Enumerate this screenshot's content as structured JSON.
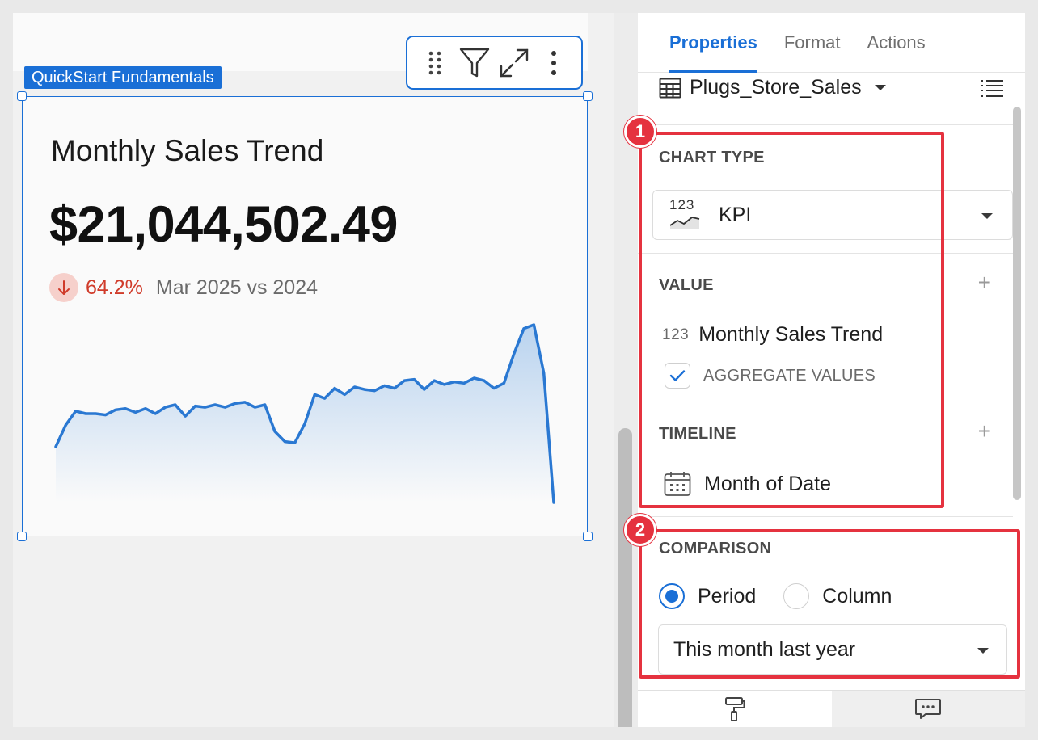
{
  "canvas": {
    "tag_label": "QuickStart Fundamentals",
    "toolbar": [
      {
        "name": "drag-handle-icon"
      },
      {
        "name": "filter-icon"
      },
      {
        "name": "expand-icon"
      },
      {
        "name": "more-vertical-icon"
      }
    ]
  },
  "kpi": {
    "title": "Monthly Sales Trend",
    "value": "$21,044,502.49",
    "delta_direction": "down",
    "delta_percent": "64.2%",
    "comparison_text": "Mar 2025 vs 2024",
    "colors": {
      "line": "#2a78d2",
      "fill_top": "#b9d3ef",
      "negative": "#d03b2a"
    }
  },
  "chart_data": {
    "type": "area",
    "values": [
      44,
      61,
      72,
      70,
      70,
      69,
      73,
      74,
      71,
      74,
      70,
      75,
      77,
      68,
      76,
      75,
      77,
      75,
      78,
      79,
      75,
      77,
      56,
      48,
      47,
      62,
      85,
      82,
      90,
      85,
      91,
      89,
      88,
      92,
      90,
      96,
      97,
      89,
      96,
      93,
      95,
      94,
      98,
      96,
      90,
      94,
      117,
      137,
      140,
      102,
      0
    ]
  },
  "panel": {
    "tabs": [
      {
        "label": "Properties",
        "active": true
      },
      {
        "label": "Format",
        "active": false
      },
      {
        "label": "Actions",
        "active": false
      }
    ],
    "data_source": "Plugs_Store_Sales",
    "chart_type": {
      "label": "CHART TYPE",
      "value": "KPI",
      "icon_text": "123"
    },
    "value_section": {
      "label": "VALUE",
      "field_type": "123",
      "field_name": "Monthly Sales Trend",
      "aggregate_label": "AGGREGATE VALUES",
      "aggregate_checked": true
    },
    "timeline": {
      "label": "TIMELINE",
      "field_name": "Month of Date"
    },
    "comparison": {
      "label": "COMPARISON",
      "options": [
        {
          "label": "Period",
          "selected": true
        },
        {
          "label": "Column",
          "selected": false
        }
      ],
      "selected_value": "This month last year"
    }
  },
  "annotations": [
    {
      "number": "1"
    },
    {
      "number": "2"
    }
  ]
}
